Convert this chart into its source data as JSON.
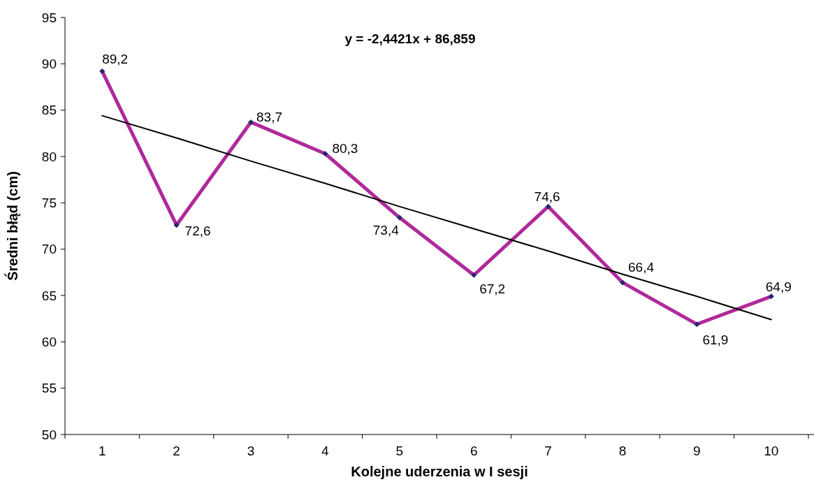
{
  "chart_data": {
    "type": "line",
    "xlabel": "Kolejne uderzenia w I sesji",
    "ylabel": "Średni błąd (cm)",
    "categories": [
      "1",
      "2",
      "3",
      "4",
      "5",
      "6",
      "7",
      "8",
      "9",
      "10"
    ],
    "series": [
      {
        "color": "#b0299a",
        "marker": "diamond",
        "values": [
          89.2,
          72.6,
          83.7,
          80.3,
          73.4,
          67.2,
          74.6,
          66.4,
          61.9,
          64.9
        ],
        "value_labels": [
          "89,2",
          "72,6",
          "83,7",
          "80,3",
          "73,4",
          "67,2",
          "74,6",
          "66,4",
          "61,9",
          "64,9"
        ]
      },
      {
        "color": "#000000",
        "marker": "none",
        "values": [
          84.4,
          82.0,
          79.5,
          77.1,
          74.6,
          72.2,
          69.8,
          67.3,
          64.9,
          62.4
        ]
      }
    ],
    "ylim": [
      50,
      95
    ],
    "yticks": [
      50,
      55,
      60,
      65,
      70,
      75,
      80,
      85,
      90,
      95
    ],
    "annotations": [
      "y = -2,4421x + 86,859"
    ]
  }
}
